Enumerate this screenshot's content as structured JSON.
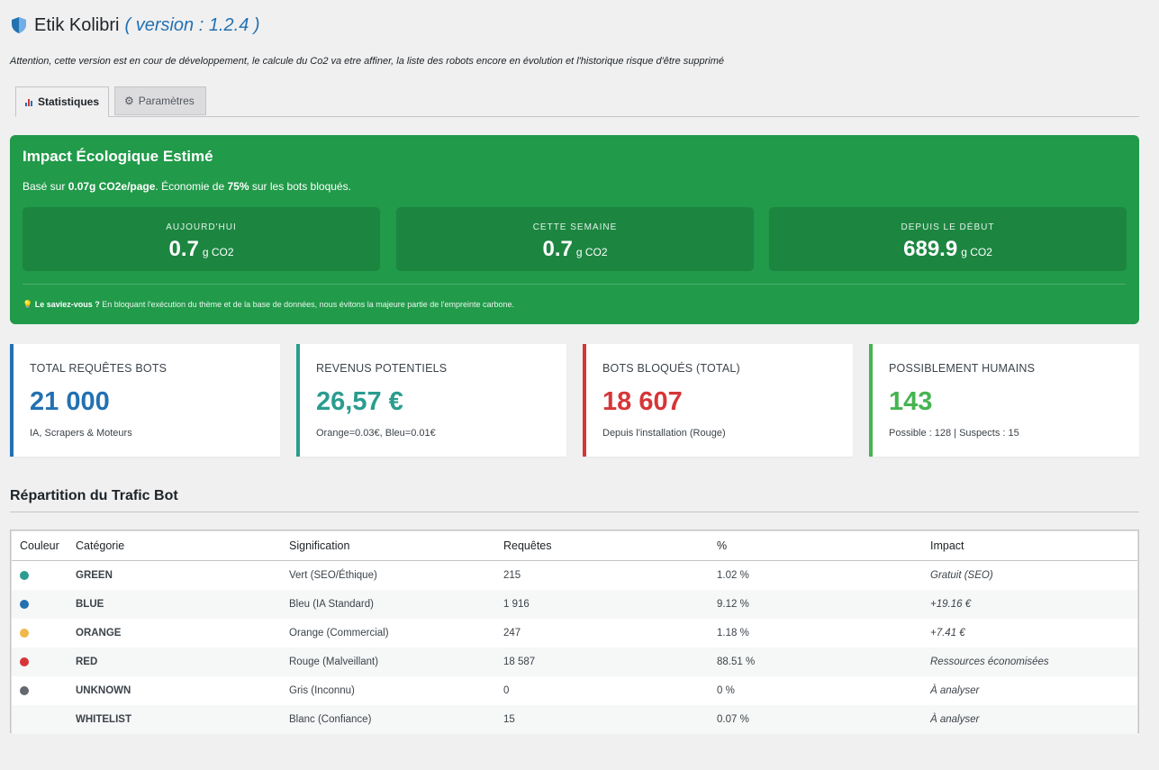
{
  "header": {
    "app_name": "Etik Kolibri",
    "version": "( version : 1.2.4 )",
    "notice": "Attention, cette version est en cour de développement, le calcule du Co2 va etre affiner, la liste des robots encore en évolution et l'historique risque d'être supprimé"
  },
  "tabs": [
    {
      "label": "Statistiques",
      "icon": "bar-chart-icon",
      "active": true
    },
    {
      "label": "Paramètres",
      "icon": "gear-icon",
      "active": false
    }
  ],
  "eco": {
    "title": "Impact Écologique Estimé",
    "subtitle_prefix": "Basé sur",
    "subtitle_rate": "0.07g CO2e/page",
    "subtitle_mid": ". Économie de",
    "subtitle_pct": "75%",
    "subtitle_suffix": "sur les bots bloqués.",
    "boxes": [
      {
        "label": "Aujourd'hui",
        "value": "0.7",
        "unit": "g CO2"
      },
      {
        "label": "Cette semaine",
        "value": "0.7",
        "unit": "g CO2"
      },
      {
        "label": "Depuis le début",
        "value": "689.9",
        "unit": "g CO2"
      }
    ],
    "tip_bold": "Le saviez-vous ?",
    "tip_text": "En bloquant l'exécution du thème et de la base de données, nous évitons la majeure partie de l'empreinte carbone."
  },
  "stats": [
    {
      "label": "Total requêtes bots",
      "value": "21 000",
      "sub": "IA, Scrapers & Moteurs",
      "color": "#2271b1"
    },
    {
      "label": "Revenus potentiels",
      "value": "26,57 €",
      "sub": "Orange=0.03€, Bleu=0.01€",
      "color": "#2a9d8f"
    },
    {
      "label": "Bots bloqués (total)",
      "value": "18 607",
      "sub": "Depuis l'installation (Rouge)",
      "color": "#d63638"
    },
    {
      "label": "Possiblement humains",
      "value": "143",
      "sub": "Possible : 128 | Suspects : 15",
      "color": "#46b450"
    }
  ],
  "table": {
    "title": "Répartition du Trafic Bot",
    "headers": [
      "Couleur",
      "Catégorie",
      "Signification",
      "Requêtes",
      "%",
      "Impact"
    ],
    "rows": [
      {
        "color": "#2a9d8f",
        "category": "GREEN",
        "meaning": "Vert (SEO/Éthique)",
        "requests": "215",
        "pct": "1.02 %",
        "impact": "Gratuit (SEO)"
      },
      {
        "color": "#2271b1",
        "category": "BLUE",
        "meaning": "Bleu (IA Standard)",
        "requests": "1 916",
        "pct": "9.12 %",
        "impact": "+19.16 €"
      },
      {
        "color": "#f0b849",
        "category": "ORANGE",
        "meaning": "Orange (Commercial)",
        "requests": "247",
        "pct": "1.18 %",
        "impact": "+7.41 €"
      },
      {
        "color": "#d63638",
        "category": "RED",
        "meaning": "Rouge (Malveillant)",
        "requests": "18 587",
        "pct": "88.51 %",
        "impact": "Ressources économisées"
      },
      {
        "color": "#646970",
        "category": "UNKNOWN",
        "meaning": "Gris (Inconnu)",
        "requests": "0",
        "pct": "0 %",
        "impact": "À analyser"
      },
      {
        "color": "#f6f7f7",
        "category": "WHITELIST",
        "meaning": "Blanc (Confiance)",
        "requests": "15",
        "pct": "0.07 %",
        "impact": "À analyser"
      }
    ]
  }
}
